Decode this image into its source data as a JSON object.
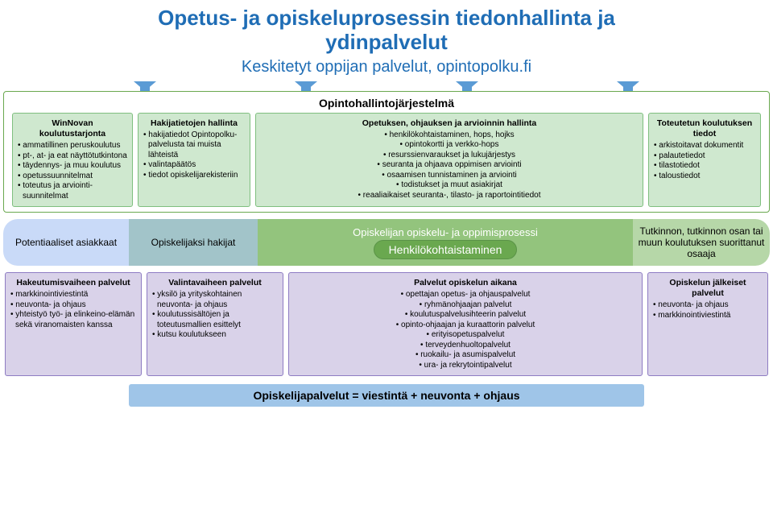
{
  "colors": {
    "title": "#1f6db5",
    "arrow": "#5b9bd5",
    "top_box_bg": "#cfe8cf",
    "top_box_border": "#7fbf7f",
    "ohj_border": "#6aa84f",
    "hz_blue": "#c9daf8",
    "hz_teal": "#a2c4c9",
    "hz_green": "#93c47d",
    "hz_pill": "#6aa84f",
    "hz_teal2": "#b6d7a8",
    "bot_box_bg": "#d9d2e9",
    "bot_box_border": "#8e7cc3",
    "footer_bg": "#9fc5e8"
  },
  "title_line1": "Opetus- ja opiskeluprosessin tiedonhallinta ja",
  "title_line2": "ydinpalvelut",
  "subtitle": "Keskitetyt oppijan palvelut, opintopolku.fi",
  "ohj_title": "Opintohallintojärjestelmä",
  "top": {
    "col1": {
      "title": "WinNovan koulutustarjonta",
      "items": [
        "ammatillinen peruskoulutus",
        "pt-, at- ja eat näyttötutkintona",
        "täydennys- ja muu koulutus",
        "opetussuunnitelmat",
        "toteutus ja arviointi-suunnitelmat"
      ]
    },
    "col2": {
      "title": "Hakijatietojen hallinta",
      "items": [
        "hakijatiedot Opintopolku-palvelusta tai muista lähteistä",
        "valintapäätös",
        "tiedot opiskelijarekisteriin"
      ]
    },
    "col3": {
      "title": "Opetuksen, ohjauksen ja arvioinnin hallinta",
      "items": [
        "henkilökohtaistaminen, hops, hojks",
        "opintokortti ja verkko-hops",
        "resurssienvaraukset ja lukujärjestys",
        "seuranta ja ohjaava oppimisen arviointi",
        "osaamisen tunnistaminen ja arviointi",
        "todistukset ja muut asiakirjat",
        "reaaliaikaiset seuranta-, tilasto- ja raportointitiedot"
      ]
    },
    "col4": {
      "title": "Toteutetun koulutuksen tiedot",
      "items": [
        "arkistoitavat dokumentit",
        "palautetiedot",
        "tilastotiedot",
        "taloustiedot"
      ]
    }
  },
  "horizons": {
    "h1": "Potentiaaliset asiakkaat",
    "h2": "Opiskelijaksi hakijat",
    "h3_top": "Opiskelijan opiskelu- ja oppimisprosessi",
    "h3_pill": "Henkilökohtaistaminen",
    "h4": "Tutkinnon, tutkinnon osan tai muun koulutuksen suorittanut osaaja"
  },
  "bottom": {
    "col1": {
      "title": "Hakeutumisvaiheen palvelut",
      "items": [
        "markkinointiviestintä",
        "neuvonta- ja ohjaus",
        "yhteistyö työ- ja elinkeino-elämän sekä viranomaisten kanssa"
      ]
    },
    "col2": {
      "title": "Valintavaiheen palvelut",
      "items": [
        "yksilö ja yrityskohtainen neuvonta- ja ohjaus",
        "koulutussisältöjen ja toteutusmallien esittelyt",
        "kutsu koulutukseen"
      ]
    },
    "col3": {
      "title": "Palvelut opiskelun aikana",
      "items": [
        "opettajan opetus- ja ohjauspalvelut",
        "ryhmänohjaajan palvelut",
        "koulutuspalvelusihteerin palvelut",
        "opinto-ohjaajan ja kuraattorin palvelut",
        "erityisopetuspalvelut",
        "terveydenhuoltopalvelut",
        "ruokailu- ja asumispalvelut",
        "ura- ja rekrytointipalvelut"
      ]
    },
    "col4": {
      "title": "Opiskelun jälkeiset palvelut",
      "items": [
        "neuvonta- ja ohjaus",
        "markkinointiviestintä"
      ]
    }
  },
  "footer": "Opiskelijapalvelut = viestintä + neuvonta + ohjaus"
}
